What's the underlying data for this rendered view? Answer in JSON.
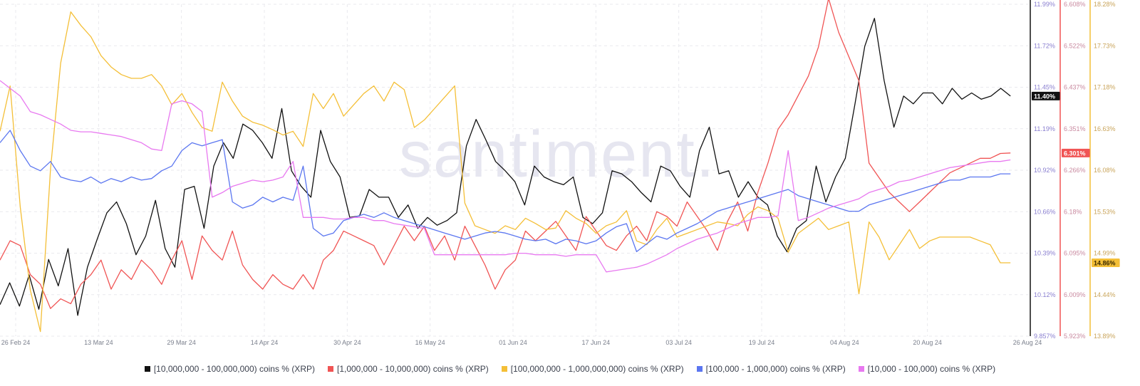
{
  "chart_data": {
    "type": "line",
    "watermark": "santiment.",
    "x_ticks": [
      "26 Feb 24",
      "13 Mar 24",
      "29 Mar 24",
      "14 Apr 24",
      "30 Apr 24",
      "16 May 24",
      "01 Jun 24",
      "17 Jun 24",
      "03 Jul 24",
      "19 Jul 24",
      "04 Aug 24",
      "20 Aug 24",
      "26 Aug 24"
    ],
    "axes": [
      {
        "id": "a1",
        "color": "#111111",
        "ticks": [
          "11.99%",
          "11.72%",
          "11.45%",
          "11.19%",
          "10.92%",
          "10.66%",
          "10.39%",
          "10.12%",
          "9.857%"
        ],
        "range": [
          9.857,
          11.99
        ],
        "current": "11.40%",
        "current_value": 11.4
      },
      {
        "id": "a2",
        "color": "#f05454",
        "ticks": [
          "6.608%",
          "6.522%",
          "6.437%",
          "6.351%",
          "6.266%",
          "6.18%",
          "6.095%",
          "6.009%",
          "5.923%"
        ],
        "range": [
          5.923,
          6.608
        ],
        "current": "6.301%",
        "current_value": 6.301
      },
      {
        "id": "a3",
        "color": "#f4bf37",
        "ticks": [
          "18.28%",
          "17.73%",
          "17.18%",
          "16.63%",
          "16.08%",
          "15.53%",
          "14.99%",
          "14.44%",
          "13.89%"
        ],
        "range": [
          13.89,
          18.28
        ],
        "current": "14.86%",
        "current_value": 14.86
      }
    ],
    "series": [
      {
        "name": "[10,000,000 - 100,000,000) coins % (XRP)",
        "color": "#111111",
        "axis": "a1",
        "values": [
          10.06,
          10.2,
          10.05,
          10.25,
          10.03,
          10.35,
          10.18,
          10.42,
          9.99,
          10.3,
          10.48,
          10.65,
          10.72,
          10.58,
          10.38,
          10.5,
          10.73,
          10.42,
          10.3,
          10.8,
          10.82,
          10.55,
          10.95,
          11.1,
          11.0,
          11.22,
          11.18,
          11.1,
          11.0,
          11.32,
          10.92,
          10.82,
          10.75,
          11.18,
          10.98,
          10.88,
          10.62,
          10.63,
          10.8,
          10.75,
          10.75,
          10.62,
          10.7,
          10.55,
          10.62,
          10.57,
          10.6,
          10.65,
          11.08,
          11.25,
          11.12,
          10.98,
          10.92,
          10.85,
          10.7,
          10.95,
          10.88,
          10.85,
          10.83,
          10.88,
          10.62,
          10.58,
          10.65,
          10.92,
          10.9,
          10.85,
          10.78,
          10.72,
          10.95,
          10.92,
          10.82,
          10.75,
          11.05,
          11.2,
          10.9,
          10.92,
          10.75,
          10.85,
          10.75,
          10.7,
          10.5,
          10.4,
          10.55,
          10.6,
          10.95,
          10.72,
          10.88,
          11.0,
          11.35,
          11.72,
          11.9,
          11.5,
          11.2,
          11.4,
          11.35,
          11.42,
          11.42,
          11.35,
          11.45,
          11.38,
          11.42,
          11.38,
          11.4,
          11.45,
          11.4
        ],
        "x_start": 0.0,
        "x_end": 0.9115
      },
      {
        "name": "[1,000,000 - 10,000,000) coins % (XRP)",
        "color": "#f05454",
        "axis": "a2",
        "values": [
          6.08,
          6.12,
          6.11,
          6.05,
          6.03,
          5.98,
          6.0,
          5.99,
          6.03,
          6.05,
          6.08,
          6.02,
          6.06,
          6.04,
          6.08,
          6.06,
          6.03,
          6.08,
          6.12,
          6.04,
          6.13,
          6.1,
          6.08,
          6.14,
          6.07,
          6.04,
          6.02,
          6.05,
          6.03,
          6.02,
          6.05,
          6.02,
          6.08,
          6.1,
          6.14,
          6.13,
          6.12,
          6.11,
          6.07,
          6.11,
          6.15,
          6.12,
          6.15,
          6.1,
          6.13,
          6.08,
          6.15,
          6.11,
          6.07,
          6.02,
          6.06,
          6.08,
          6.14,
          6.12,
          6.14,
          6.16,
          6.13,
          6.1,
          6.17,
          6.14,
          6.11,
          6.1,
          6.13,
          6.15,
          6.12,
          6.18,
          6.17,
          6.15,
          6.2,
          6.17,
          6.14,
          6.1,
          6.16,
          6.2,
          6.14,
          6.22,
          6.28,
          6.35,
          6.38,
          6.42,
          6.46,
          6.52,
          6.62,
          6.55,
          6.5,
          6.45,
          6.28,
          6.25,
          6.22,
          6.2,
          6.18,
          6.2,
          6.22,
          6.24,
          6.26,
          6.27,
          6.28,
          6.29,
          6.29,
          6.3,
          6.301
        ],
        "x_start": 0.0,
        "x_end": 0.9115
      },
      {
        "name": "[100,000,000 - 1,000,000,000) coins % (XRP)",
        "color": "#f4bf37",
        "axis": "a3",
        "values": [
          16.6,
          17.2,
          15.6,
          14.5,
          13.95,
          16.1,
          17.5,
          18.18,
          18.0,
          17.85,
          17.6,
          17.45,
          17.35,
          17.3,
          17.3,
          17.35,
          17.2,
          16.95,
          17.1,
          16.85,
          16.65,
          16.6,
          17.25,
          17.0,
          16.8,
          16.72,
          16.68,
          16.62,
          16.55,
          16.6,
          16.4,
          17.1,
          16.9,
          17.1,
          16.8,
          16.95,
          17.1,
          17.2,
          17.0,
          17.25,
          17.15,
          16.65,
          16.75,
          16.9,
          17.05,
          17.2,
          15.65,
          15.35,
          15.3,
          15.25,
          15.35,
          15.3,
          15.45,
          15.38,
          15.3,
          15.32,
          15.55,
          15.45,
          15.38,
          15.25,
          15.35,
          15.4,
          15.55,
          15.15,
          15.1,
          15.3,
          15.45,
          15.2,
          15.25,
          15.3,
          15.35,
          15.4,
          15.38,
          15.35,
          15.5,
          15.6,
          15.55,
          15.45,
          15.0,
          15.25,
          15.35,
          15.45,
          15.3,
          15.35,
          15.4,
          14.45,
          15.4,
          15.2,
          14.9,
          15.1,
          15.3,
          15.05,
          15.15,
          15.2,
          15.2,
          15.2,
          15.2,
          15.15,
          15.1,
          14.86,
          14.86
        ],
        "x_start": 0.0,
        "x_end": 0.9115
      },
      {
        "name": "[100,000 - 1,000,000) coins % (XRP)",
        "color": "#5b76f0",
        "axis": "a1",
        "values": [
          11.1,
          11.18,
          11.05,
          10.95,
          10.92,
          10.98,
          10.88,
          10.86,
          10.85,
          10.88,
          10.84,
          10.87,
          10.85,
          10.88,
          10.86,
          10.87,
          10.92,
          10.95,
          11.05,
          11.1,
          11.08,
          11.1,
          11.12,
          10.72,
          10.68,
          10.7,
          10.75,
          10.72,
          10.75,
          10.73,
          10.95,
          10.55,
          10.5,
          10.52,
          10.6,
          10.62,
          10.64,
          10.62,
          10.65,
          10.62,
          10.6,
          10.58,
          10.56,
          10.54,
          10.52,
          10.5,
          10.48,
          10.5,
          10.52,
          10.53,
          10.52,
          10.5,
          10.48,
          10.47,
          10.48,
          10.45,
          10.48,
          10.47,
          10.45,
          10.47,
          10.52,
          10.56,
          10.58,
          10.4,
          10.45,
          10.5,
          10.48,
          10.52,
          10.55,
          10.58,
          10.62,
          10.66,
          10.68,
          10.7,
          10.72,
          10.74,
          10.76,
          10.78,
          10.8,
          10.76,
          10.74,
          10.72,
          10.7,
          10.68,
          10.66,
          10.66,
          10.7,
          10.72,
          10.74,
          10.76,
          10.78,
          10.8,
          10.82,
          10.84,
          10.86,
          10.86,
          10.88,
          10.88,
          10.88,
          10.9,
          10.9
        ],
        "x_start": 0.0,
        "x_end": 0.9115
      },
      {
        "name": "[10,000 - 100,000) coins % (XRP)",
        "color": "#e879f0",
        "axis": "a1",
        "values": [
          11.5,
          11.45,
          11.4,
          11.3,
          11.28,
          11.25,
          11.22,
          11.18,
          11.17,
          11.17,
          11.16,
          11.15,
          11.14,
          11.12,
          11.1,
          11.06,
          11.05,
          11.35,
          11.37,
          11.35,
          11.3,
          10.75,
          10.78,
          10.82,
          10.84,
          10.86,
          10.85,
          10.86,
          10.88,
          10.98,
          10.62,
          10.62,
          10.62,
          10.61,
          10.61,
          10.62,
          10.62,
          10.6,
          10.6,
          10.58,
          10.57,
          10.56,
          10.55,
          10.38,
          10.38,
          10.38,
          10.38,
          10.38,
          10.38,
          10.38,
          10.38,
          10.39,
          10.39,
          10.38,
          10.38,
          10.38,
          10.37,
          10.38,
          10.38,
          10.38,
          10.27,
          10.28,
          10.29,
          10.3,
          10.32,
          10.35,
          10.38,
          10.42,
          10.45,
          10.48,
          10.5,
          10.52,
          10.55,
          10.58,
          10.6,
          10.62,
          10.62,
          10.63,
          11.05,
          10.6,
          10.62,
          10.65,
          10.68,
          10.7,
          10.72,
          10.74,
          10.78,
          10.8,
          10.82,
          10.85,
          10.86,
          10.88,
          10.9,
          10.92,
          10.94,
          10.95,
          10.96,
          10.97,
          10.98,
          10.98,
          10.99
        ],
        "x_start": 0.0,
        "x_end": 0.9115
      }
    ]
  }
}
